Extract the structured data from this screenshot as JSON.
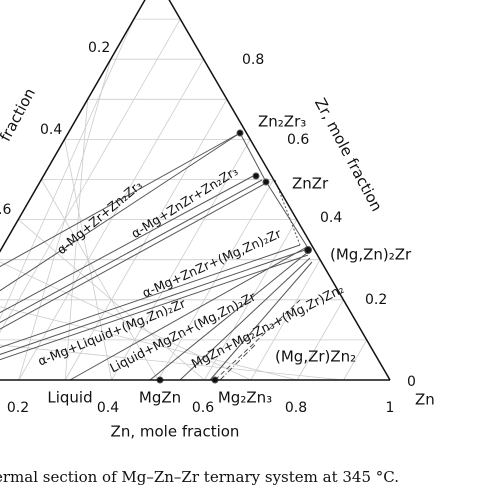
{
  "figure": {
    "zn_ticks": [
      "0.2",
      "0.4",
      "0.6",
      "0.8",
      "1"
    ],
    "zr_ticks": [
      "0.8",
      "0.6",
      "0.4",
      "0.2",
      "0"
    ],
    "left_ticks": [
      "0.2",
      "0.4",
      ".6"
    ],
    "corner": "Zn",
    "zn_axis_label": "Zn, mole fraction",
    "zr_axis_label": "Zr, mole fraction",
    "left_axis_label": "fraction",
    "phase_labels": [
      "Zn₂Zr₃",
      "ZnZr",
      "(Mg,Zn)₂Zr",
      "(Mg,Zr)Zn₂",
      "Liquid",
      "MgZn",
      "Mg₂Zn₃"
    ],
    "region_labels": [
      "α-Mg+Zr+Zn₂Zr₃",
      "α-Mg+ZnZr+Zn₂Zr₃",
      "α-Mg+ZnZr+(Mg,Zn)₂Zr",
      "α-Mg+Liquid+(Mg,Zn)₂Zr",
      "Liquid+MgZn+(Mg,Zn)₂Zr",
      "MgZn+Mg₂Zn₃+(Mg,Zr)Zn₂"
    ]
  },
  "caption": "ermal section of Mg–Zn–Zr ternary system at 345 °C."
}
